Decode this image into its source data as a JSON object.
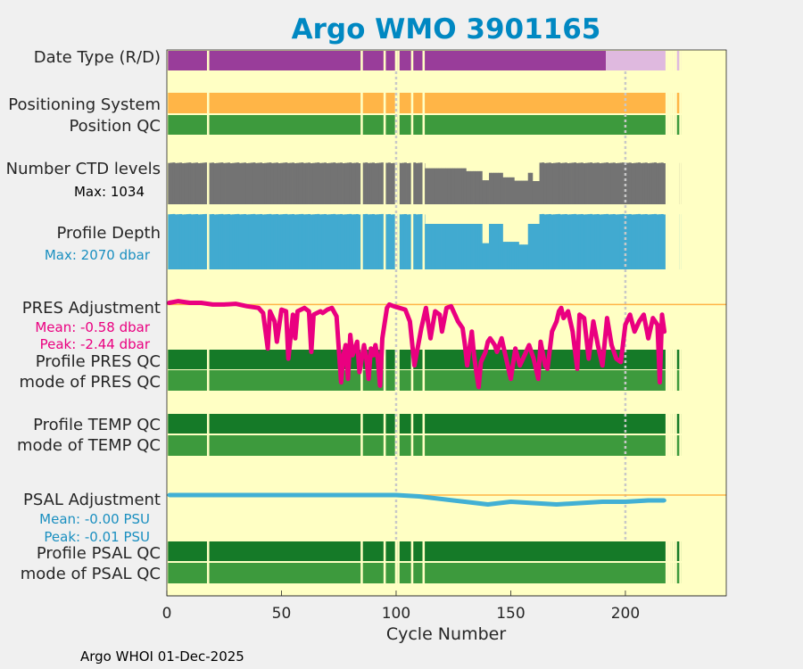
{
  "chart_data": {
    "type": "status-strip",
    "title": "Argo WMO 3901165",
    "xlabel": "Cycle Number",
    "xlim": [
      0,
      244
    ],
    "xticks": [
      0,
      50,
      100,
      150,
      200
    ],
    "footer": "Argo WHOI 01-Dec-2025",
    "gaps": [
      18,
      85,
      95,
      100,
      101,
      107,
      112,
      218,
      219,
      220,
      221,
      222,
      224
    ],
    "last_cycle": 224,
    "row_labels": {
      "data_type": "Date Type (R/D)",
      "positioning_system": "Positioning System",
      "position_qc": "Position QC",
      "ctd_levels": "Number CTD levels",
      "ctd_max": "Max: 1034",
      "profile_depth": "Profile Depth",
      "depth_max": "Max: 2070 dbar",
      "pres_adjustment": "PRES Adjustment",
      "pres_mean": "Mean: -0.58 dbar",
      "pres_peak": "Peak: -2.44 dbar",
      "profile_pres_qc": "Profile PRES QC",
      "mode_pres_qc": "mode of PRES QC",
      "profile_temp_qc": "Profile TEMP QC",
      "mode_temp_qc": "mode of TEMP QC",
      "psal_adjustment": "PSAL Adjustment",
      "psal_mean": "Mean: -0.00 PSU",
      "psal_peak": "Peak: -0.01 PSU",
      "profile_psal_qc": "Profile PSAL QC",
      "mode_psal_qc": "mode of PSAL QC"
    },
    "data_type": {
      "realtime_until": 191,
      "delayed_from": 192
    },
    "ctd_levels": {
      "max": 1034,
      "nominal": 1000,
      "reduced_segments": [
        {
          "from": 113,
          "to": 130,
          "value": 870
        },
        {
          "from": 131,
          "to": 137,
          "value": 800
        },
        {
          "from": 138,
          "to": 140,
          "value": 580
        },
        {
          "from": 141,
          "to": 146,
          "value": 760
        },
        {
          "from": 147,
          "to": 151,
          "value": 650
        },
        {
          "from": 152,
          "to": 157,
          "value": 570
        },
        {
          "from": 158,
          "to": 159,
          "value": 760
        },
        {
          "from": 160,
          "to": 162,
          "value": 560
        }
      ]
    },
    "profile_depth": {
      "max": 2070,
      "nominal": 2000,
      "reduced_segments": [
        {
          "from": 113,
          "to": 128,
          "value": 1650
        },
        {
          "from": 129,
          "to": 137,
          "value": 1650
        },
        {
          "from": 138,
          "to": 140,
          "value": 950
        },
        {
          "from": 141,
          "to": 146,
          "value": 1650
        },
        {
          "from": 147,
          "to": 153,
          "value": 1000
        },
        {
          "from": 154,
          "to": 157,
          "value": 900
        },
        {
          "from": 158,
          "to": 162,
          "value": 1650
        }
      ]
    },
    "pres_adjustment": {
      "units": "dbar",
      "ylim": [
        -2.6,
        0.3
      ],
      "x": [
        1,
        5,
        10,
        15,
        20,
        25,
        30,
        35,
        40,
        42,
        44,
        45,
        47,
        48,
        50,
        52,
        53,
        55,
        56,
        57,
        60,
        62,
        63,
        64,
        67,
        68,
        70,
        72,
        74,
        75,
        76,
        77,
        78,
        79,
        80,
        81,
        83,
        84,
        86,
        87,
        88,
        89,
        90,
        91,
        92,
        93,
        94,
        96,
        97,
        99,
        104,
        106,
        108,
        111,
        113,
        115,
        117,
        119,
        120,
        122,
        124,
        126,
        127,
        129,
        130,
        131,
        133,
        134,
        135,
        136,
        137,
        139,
        140,
        141,
        143,
        144,
        146,
        148,
        150,
        152,
        154,
        156,
        158,
        160,
        162,
        163,
        165,
        166,
        168,
        170,
        171,
        172,
        173,
        175,
        177,
        179,
        180,
        182,
        184,
        186,
        188,
        190,
        192,
        194,
        196,
        198,
        200,
        202,
        204,
        206,
        208,
        210,
        212,
        214,
        215,
        216,
        217
      ],
      "values": [
        0.05,
        0.1,
        0.05,
        0.05,
        0.0,
        0.0,
        0.02,
        -0.05,
        -0.1,
        -0.25,
        -1.3,
        -0.2,
        -0.5,
        -1.1,
        -0.15,
        -0.2,
        -1.6,
        -0.3,
        -1.0,
        -0.2,
        -0.1,
        -0.2,
        -1.4,
        -0.3,
        -0.2,
        -0.25,
        -0.15,
        -0.1,
        -0.35,
        -1.3,
        -2.3,
        -1.5,
        -1.2,
        -2.2,
        -0.9,
        -1.5,
        -1.1,
        -2.0,
        -1.2,
        -1.6,
        -2.2,
        -1.3,
        -1.5,
        -1.2,
        -1.6,
        -2.4,
        -1.0,
        -0.1,
        0.0,
        -0.05,
        -0.15,
        -0.5,
        -1.8,
        -0.7,
        -0.1,
        -1.0,
        -0.2,
        -0.3,
        -0.8,
        -0.1,
        -0.05,
        -0.35,
        -0.5,
        -0.7,
        -1.2,
        -1.8,
        -0.8,
        -1.5,
        -2.0,
        -2.44,
        -1.7,
        -1.4,
        -1.1,
        -1.0,
        -1.2,
        -1.4,
        -1.0,
        -1.6,
        -2.2,
        -1.3,
        -1.8,
        -1.5,
        -1.2,
        -1.6,
        -2.2,
        -1.1,
        -1.8,
        -1.9,
        -0.8,
        -0.5,
        -0.2,
        -0.1,
        -0.4,
        -0.2,
        -0.8,
        -1.9,
        -0.3,
        -0.4,
        -1.6,
        -0.5,
        -1.2,
        -1.8,
        -0.4,
        -1.2,
        -1.6,
        -1.7,
        -0.6,
        -0.3,
        -0.8,
        -0.5,
        -0.3,
        -1.0,
        -0.4,
        -0.6,
        -2.3,
        -0.3,
        -0.8
      ]
    },
    "psal_adjustment": {
      "units": "PSU",
      "ylim": [
        -0.03,
        0.01
      ],
      "x": [
        1,
        20,
        40,
        60,
        80,
        100,
        110,
        120,
        130,
        140,
        145,
        150,
        160,
        170,
        180,
        190,
        200,
        210,
        217
      ],
      "values": [
        0.0,
        0.0,
        0.0,
        0.0,
        0.0,
        0.0,
        -0.001,
        -0.003,
        -0.005,
        -0.007,
        -0.006,
        -0.005,
        -0.006,
        -0.007,
        -0.006,
        -0.005,
        -0.005,
        -0.004,
        -0.004
      ]
    },
    "colors": {
      "background": "#ffffc4",
      "realtime": "#993d9a",
      "delayed": "#dfb9df",
      "positioning": "#ffb547",
      "qc_good_mode": "#3d9a3d",
      "qc_good_profile": "#157a28",
      "ctd": "#737373",
      "depth": "#41aad0",
      "pres_line": "#ea0080",
      "psal_line": "#42b0d4",
      "zero_line": "#ffb547",
      "title": "#0088c2",
      "depth_label": "#1a8fc0",
      "pres_label": "#ea0080",
      "psal_label": "#1a8fc0",
      "vline": "#c8c8c8",
      "gap": "#ffffc4"
    }
  }
}
